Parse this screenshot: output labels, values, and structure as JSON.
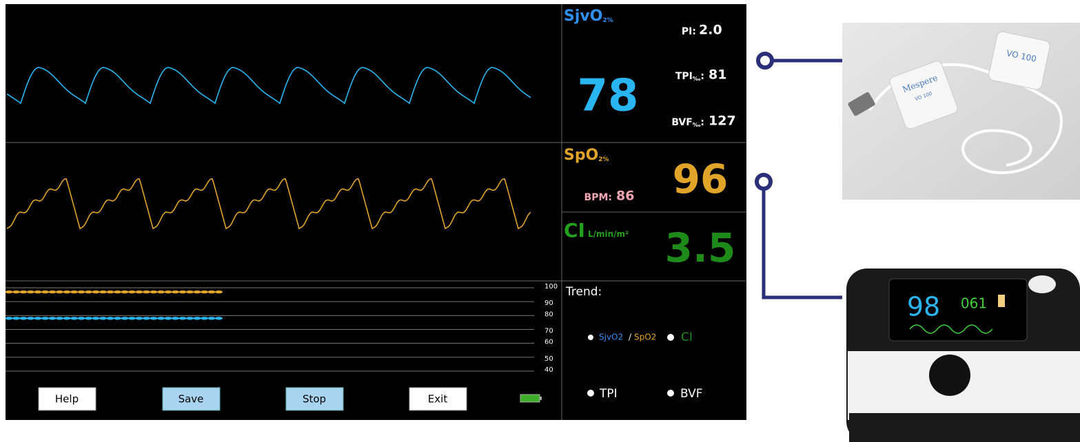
{
  "sjvo2": {
    "label": "SjvO",
    "sub": "2%",
    "value": "78"
  },
  "pi": {
    "label": "PI:",
    "value": "2.0"
  },
  "tpi": {
    "label": "TPI",
    "sub": "‰",
    "colon": ":",
    "value": "81"
  },
  "bvf": {
    "label": "BVF",
    "sub": "‰",
    "colon": ":",
    "value": "127"
  },
  "spo2": {
    "label": "SpO",
    "sub": "2%",
    "value": "96"
  },
  "bpm": {
    "label": "BPM:",
    "value": "86"
  },
  "ci": {
    "label": "CI",
    "unit": "L/min/m²",
    "value": "3.5"
  },
  "trend": {
    "title": "Trend:",
    "ylim": [
      40,
      100
    ],
    "yticks": [
      100,
      90,
      80,
      70,
      60,
      50,
      40
    ],
    "series": [
      {
        "name": "SpO2",
        "color": "#e0a428",
        "values": [
          97,
          97,
          97,
          97,
          97,
          97,
          97,
          97,
          97,
          97,
          97,
          97,
          97,
          97,
          97,
          97,
          97,
          97,
          97,
          97,
          97,
          97,
          97,
          97,
          97,
          97,
          97,
          97,
          97,
          97
        ]
      },
      {
        "name": "SjvO2",
        "color": "#29b6f0",
        "values": [
          78,
          78,
          78,
          78,
          78,
          78,
          78,
          78,
          78,
          78,
          78,
          78,
          78,
          78,
          78,
          78,
          78,
          78,
          78,
          78,
          78,
          78,
          78,
          78,
          78,
          78,
          78,
          78,
          78,
          78
        ]
      }
    ],
    "options": [
      "SjvO2",
      "/",
      "SpO2",
      "CI",
      "TPI",
      "BVF"
    ]
  },
  "buttons": [
    "Help",
    "Save",
    "Stop",
    "Exit"
  ],
  "devices": {
    "vo_brand": "Mespere",
    "vo_model": "VO 100",
    "vo_small": "VO 100",
    "ox_value": "98",
    "ox_pulse": "061"
  }
}
